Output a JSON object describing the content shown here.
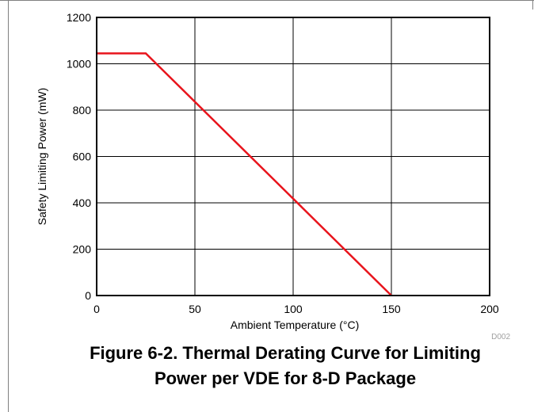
{
  "chart_data": {
    "type": "line",
    "title": "",
    "xlabel": "Ambient Temperature (°C)",
    "ylabel": "Safety Limiting Power (mW)",
    "xlim": [
      0,
      200
    ],
    "ylim": [
      0,
      1200
    ],
    "xticks": [
      0,
      50,
      100,
      150,
      200
    ],
    "yticks": [
      0,
      200,
      400,
      600,
      800,
      1000,
      1200
    ],
    "xtick_labels": [
      "0",
      "50",
      "100",
      "150",
      "200"
    ],
    "ytick_labels": [
      "0",
      "200",
      "400",
      "600",
      "800",
      "1000",
      "1200"
    ],
    "grid": true,
    "series": [
      {
        "color": "#e8141c",
        "x": [
          0,
          25,
          150
        ],
        "y": [
          1045,
          1045,
          0
        ]
      }
    ]
  },
  "figure": {
    "code": "D002",
    "caption_line1": "Figure 6-2. Thermal Derating Curve for Limiting",
    "caption_line2": "Power per VDE for 8-D Package"
  }
}
